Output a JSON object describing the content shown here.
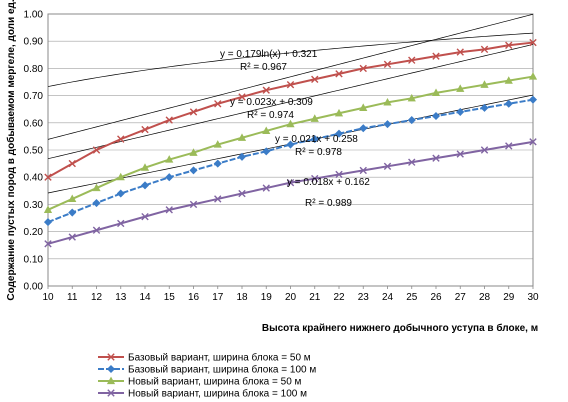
{
  "chart_data": {
    "type": "line",
    "title": "",
    "xlabel": "Высота крайнего нижнего добычного  уступа в блоке, м",
    "ylabel": "Содержание пустых пород в добываемом мергеле, доли ед.",
    "xlim": [
      10,
      30
    ],
    "ylim": [
      0,
      1.0
    ],
    "x_ticks": [
      "10",
      "11",
      "12",
      "13",
      "14",
      "15",
      "16",
      "17",
      "18",
      "19",
      "20",
      "21",
      "22",
      "23",
      "24",
      "25",
      "26",
      "27",
      "28",
      "29",
      "30"
    ],
    "y_ticks": [
      "0.00",
      "0.10",
      "0.20",
      "0.30",
      "0.40",
      "0.50",
      "0.60",
      "0.70",
      "0.80",
      "0.90",
      "1.00"
    ],
    "grid": "horizontal",
    "legend_position": "bottom",
    "x": [
      10,
      11,
      12,
      13,
      14,
      15,
      16,
      17,
      18,
      19,
      20,
      21,
      22,
      23,
      24,
      25,
      26,
      27,
      28,
      29,
      30
    ],
    "series": [
      {
        "name": "Базовый вариант, ширина блока = 50 м",
        "color": "#c0504d",
        "marker": "x",
        "values": [
          0.4,
          0.45,
          0.5,
          0.54,
          0.575,
          0.61,
          0.64,
          0.67,
          0.695,
          0.72,
          0.74,
          0.76,
          0.78,
          0.8,
          0.815,
          0.83,
          0.845,
          0.86,
          0.87,
          0.885,
          0.895
        ]
      },
      {
        "name": "Базовый вариант, ширина блока = 100 м",
        "color": "#3b7cc7",
        "marker": "diamond",
        "dashed": true,
        "values": [
          0.235,
          0.27,
          0.305,
          0.34,
          0.37,
          0.4,
          0.425,
          0.45,
          0.475,
          0.495,
          0.52,
          0.54,
          0.56,
          0.58,
          0.595,
          0.61,
          0.625,
          0.64,
          0.655,
          0.67,
          0.685
        ]
      },
      {
        "name": "Новый вариант, ширина блока = 50 м",
        "color": "#9bbb59",
        "marker": "triangle",
        "values": [
          0.28,
          0.32,
          0.36,
          0.4,
          0.435,
          0.465,
          0.49,
          0.52,
          0.545,
          0.57,
          0.595,
          0.615,
          0.635,
          0.655,
          0.675,
          0.69,
          0.71,
          0.725,
          0.74,
          0.755,
          0.77
        ]
      },
      {
        "name": "Новый вариант, ширина блока = 100 м",
        "color": "#8064a2",
        "marker": "x",
        "values": [
          0.155,
          0.18,
          0.205,
          0.23,
          0.255,
          0.28,
          0.3,
          0.32,
          0.34,
          0.36,
          0.38,
          0.395,
          0.41,
          0.425,
          0.44,
          0.455,
          0.47,
          0.485,
          0.5,
          0.515,
          0.53
        ]
      }
    ],
    "trendlines": [
      {
        "type": "log",
        "a": 0.179,
        "b": 0.321,
        "x_range": [
          10,
          30
        ],
        "equation": "y = 0.179ln(x) + 0.321",
        "r2": "R² = 0.967"
      },
      {
        "type": "linear",
        "a": 0.023,
        "b": 0.309,
        "x_range": [
          10,
          30
        ],
        "equation": "y = 0.023x + 0.309",
        "r2": "R² = 0.974"
      },
      {
        "type": "linear",
        "a": 0.021,
        "b": 0.258,
        "x_range": [
          10,
          30
        ],
        "equation": "y = 0.021x + 0.258",
        "r2": "R² = 0.978"
      },
      {
        "type": "linear",
        "a": 0.018,
        "b": 0.162,
        "x_range": [
          10,
          30
        ],
        "equation": "y = 0.018x + 0.162",
        "r2": "R² = 0.989"
      }
    ]
  }
}
